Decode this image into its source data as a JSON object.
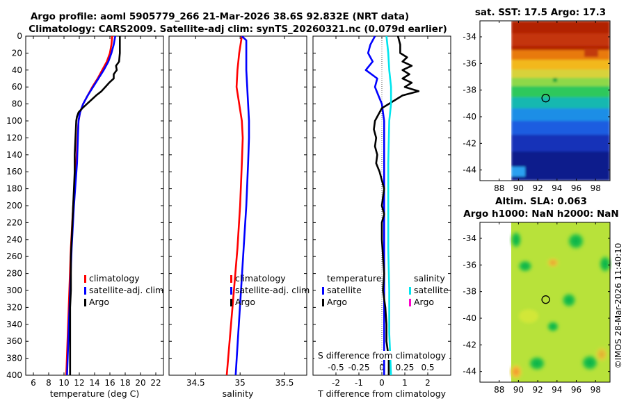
{
  "colors": {
    "clim": "#ff0000",
    "sat": "#0000ff",
    "argo": "#000000",
    "sal_sat": "#00e5ee",
    "sal_argo": "#ff00cc"
  },
  "header": {
    "line1": "Argo profile: aoml 5905779_266 21-Mar-2026 38.6S 92.832E (NRT data)",
    "line2": "Climatology: CARS2009. Satellite-adj clim: synTS_20260321.nc (0.079d earlier)"
  },
  "depth_ticks": [
    "0",
    "20",
    "40",
    "60",
    "80",
    "100",
    "120",
    "140",
    "160",
    "180",
    "200",
    "220",
    "240",
    "260",
    "280",
    "300",
    "320",
    "340",
    "360",
    "380",
    "400"
  ],
  "legends": {
    "temp": [
      "climatology",
      "satellite-adj. clim",
      "Argo"
    ],
    "sal": [
      "climatology",
      "satellite-adj. clim",
      "Argo"
    ],
    "diff_temp_title": "temperature",
    "diff_sal_title": "salinity",
    "diff_temp": [
      "satellite",
      "Argo"
    ],
    "diff_sal": [
      "satellite",
      "Argo"
    ]
  },
  "watermark": "©IMOS 28-Mar-2026 11:40:10",
  "chart_data": [
    {
      "type": "line",
      "xlabel": "temperature (deg C)",
      "ylabel": "depth",
      "xlim": [
        5,
        23
      ],
      "ylim": [
        400,
        0
      ],
      "xticks": [
        "6",
        "8",
        "10",
        "12",
        "14",
        "16",
        "18",
        "20",
        "22"
      ],
      "xtick_values": [
        6,
        8,
        10,
        12,
        14,
        16,
        18,
        20,
        22
      ],
      "series": [
        {
          "name": "climatology",
          "color": "clim",
          "depth": [
            0,
            10,
            20,
            30,
            40,
            50,
            60,
            70,
            80,
            90,
            100,
            150,
            200,
            250,
            300,
            350,
            400
          ],
          "values": [
            16.3,
            16.2,
            16.0,
            15.6,
            15.0,
            14.4,
            13.7,
            13.1,
            12.5,
            12.1,
            11.9,
            11.6,
            11.2,
            10.9,
            10.7,
            10.5,
            10.3
          ]
        },
        {
          "name": "satellite-adj. clim",
          "color": "sat",
          "depth": [
            0,
            10,
            20,
            30,
            40,
            50,
            60,
            70,
            80,
            90,
            100,
            150,
            200,
            250,
            300,
            350,
            400
          ],
          "values": [
            16.7,
            16.5,
            16.2,
            15.8,
            15.2,
            14.5,
            13.8,
            13.1,
            12.5,
            12.1,
            11.9,
            11.7,
            11.3,
            11.0,
            10.8,
            10.6,
            10.4
          ]
        },
        {
          "name": "Argo",
          "color": "argo",
          "depth": [
            0,
            20,
            30,
            35,
            40,
            45,
            50,
            55,
            60,
            65,
            70,
            75,
            80,
            85,
            90,
            95,
            100,
            120,
            140,
            160,
            180,
            200,
            220,
            240,
            260,
            280,
            300,
            320,
            340,
            360,
            380,
            400
          ],
          "values": [
            17.3,
            17.3,
            17.2,
            16.8,
            16.9,
            16.5,
            16.5,
            15.9,
            15.4,
            14.9,
            14.2,
            13.6,
            13.0,
            12.4,
            11.9,
            11.7,
            11.6,
            11.5,
            11.4,
            11.4,
            11.3,
            11.2,
            11.1,
            11.0,
            10.9,
            10.9,
            10.9,
            10.8,
            10.8,
            10.8,
            10.8,
            10.8
          ]
        }
      ]
    },
    {
      "type": "line",
      "xlabel": "salinity",
      "ylabel": "depth",
      "xlim": [
        34.2,
        35.75
      ],
      "ylim": [
        400,
        0
      ],
      "xticks": [
        "34.5",
        "35",
        "35.5"
      ],
      "xtick_values": [
        34.5,
        35,
        35.5
      ],
      "series": [
        {
          "name": "climatology",
          "color": "clim",
          "depth": [
            0,
            20,
            40,
            60,
            80,
            100,
            120,
            150,
            200,
            250,
            300,
            350,
            400
          ],
          "values": [
            35.02,
            34.99,
            34.97,
            34.96,
            34.99,
            35.02,
            35.03,
            35.02,
            35.0,
            34.97,
            34.93,
            34.89,
            34.85
          ]
        },
        {
          "name": "satellite-adj. clim",
          "color": "sat",
          "depth": [
            0,
            5,
            10,
            20,
            40,
            60,
            80,
            100,
            120,
            150,
            200,
            250,
            300,
            350,
            400
          ],
          "values": [
            35.02,
            35.07,
            35.07,
            35.07,
            35.07,
            35.08,
            35.09,
            35.1,
            35.1,
            35.09,
            35.07,
            35.04,
            35.01,
            34.98,
            34.95
          ]
        }
      ]
    },
    {
      "type": "line",
      "xlabel": "T difference from climatology",
      "x2label": "S difference from climatology",
      "ylabel": "depth",
      "xlim": [
        -3,
        3
      ],
      "x2lim": [
        -0.75,
        0.75
      ],
      "ylim": [
        400,
        0
      ],
      "xticks": [
        "-2",
        "-1",
        "0",
        "1",
        "2"
      ],
      "xtick_values": [
        -2,
        -1,
        0,
        1,
        2
      ],
      "x2ticks": [
        "-0.5",
        "-0.25",
        "0",
        "0.25",
        "0.5"
      ],
      "x2tick_values": [
        -0.5,
        -0.25,
        0,
        0.25,
        0.5
      ],
      "series": [
        {
          "name": "temperature satellite",
          "color": "sat",
          "axis": "T",
          "depth": [
            0,
            10,
            20,
            30,
            40,
            50,
            60,
            70,
            80,
            90,
            100,
            150,
            200,
            300,
            400
          ],
          "values": [
            -0.3,
            -0.5,
            -0.6,
            -0.4,
            -0.7,
            -0.2,
            -0.3,
            -0.15,
            0.0,
            0.05,
            0.1,
            0.1,
            0.1,
            0.1,
            0.1
          ]
        },
        {
          "name": "temperature Argo",
          "color": "argo",
          "axis": "T",
          "depth": [
            0,
            10,
            20,
            25,
            30,
            35,
            40,
            45,
            50,
            55,
            60,
            65,
            70,
            75,
            80,
            85,
            90,
            95,
            100,
            110,
            120,
            130,
            140,
            150,
            160,
            170,
            180,
            190,
            200,
            210,
            220,
            240,
            260,
            280,
            300,
            320,
            340,
            360,
            380,
            400
          ],
          "values": [
            0.7,
            0.8,
            0.8,
            1.1,
            0.9,
            1.3,
            0.9,
            1.2,
            0.9,
            1.3,
            1.0,
            1.6,
            0.9,
            0.6,
            0.3,
            0.0,
            -0.1,
            -0.2,
            -0.3,
            -0.35,
            -0.25,
            -0.3,
            -0.2,
            -0.25,
            -0.1,
            0.0,
            0.1,
            0.05,
            0.0,
            0.1,
            0.0,
            0.0,
            0.05,
            0.1,
            0.05,
            0.15,
            0.2,
            0.2,
            0.3,
            0.3
          ]
        },
        {
          "name": "salinity satellite",
          "color": "sal_sat",
          "axis": "S",
          "depth": [
            0,
            10,
            20,
            40,
            60,
            80,
            100,
            150,
            200,
            250,
            300,
            350,
            400
          ],
          "values": [
            0.05,
            0.06,
            0.07,
            0.08,
            0.1,
            0.1,
            0.08,
            0.07,
            0.07,
            0.07,
            0.08,
            0.08,
            0.1
          ]
        },
        {
          "name": "salinity Argo",
          "color": "sal_argo",
          "axis": "S",
          "depth": [],
          "values": []
        }
      ]
    }
  ],
  "maps": [
    {
      "title": "sat. SST: 17.5 Argo: 17.3",
      "xlim": [
        86,
        99.5
      ],
      "ylim": [
        -44.8,
        -32.8
      ],
      "xticks": [
        "88",
        "90",
        "92",
        "94",
        "96",
        "98"
      ],
      "xtick_values": [
        88,
        90,
        92,
        94,
        96,
        98
      ],
      "yticks": [
        "-34",
        "-36",
        "-38",
        "-40",
        "-42",
        "-44"
      ],
      "ytick_values": [
        -34,
        -36,
        -38,
        -40,
        -42,
        -44
      ],
      "data_lon_min": 90,
      "marker": {
        "lon": 92.832,
        "lat": -38.6
      }
    },
    {
      "title1": "Altim. SLA: 0.063",
      "title2": "Argo h1000: NaN h2000: NaN",
      "xlim": [
        86,
        99.5
      ],
      "ylim": [
        -44.8,
        -32.8
      ],
      "xticks": [
        "88",
        "90",
        "92",
        "94",
        "96",
        "98"
      ],
      "xtick_values": [
        88,
        90,
        92,
        94,
        96,
        98
      ],
      "yticks": [
        "-34",
        "-36",
        "-38",
        "-40",
        "-42",
        "-44"
      ],
      "ytick_values": [
        -34,
        -36,
        -38,
        -40,
        -42,
        -44
      ],
      "data_lon_min": 90,
      "marker": {
        "lon": 92.832,
        "lat": -38.6
      }
    }
  ]
}
